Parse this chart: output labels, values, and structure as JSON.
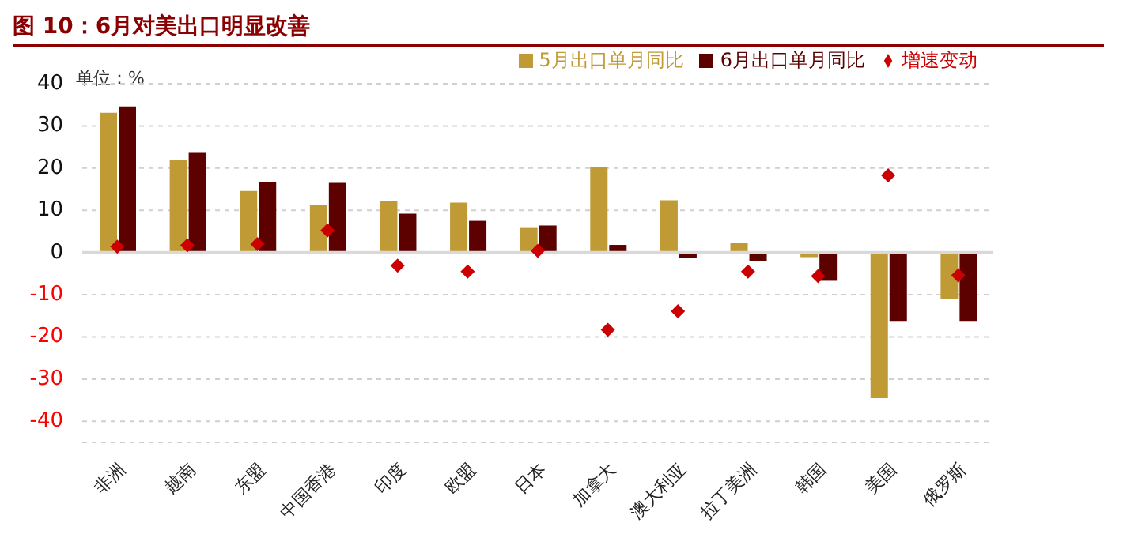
{
  "chart_data": {
    "type": "bar",
    "title": "图 10：6月对美出口明显改善",
    "annotations": [
      "单位：%"
    ],
    "categories": [
      "非洲",
      "越南",
      "东盟",
      "中国香港",
      "印度",
      "欧盟",
      "日本",
      "加拿大",
      "澳大利亚",
      "拉丁美洲",
      "韩国",
      "美国",
      "俄罗斯"
    ],
    "series": [
      {
        "name": "5月出口单月同比",
        "color": "#c09a35",
        "values": [
          33.1,
          21.9,
          14.6,
          11.2,
          12.3,
          11.8,
          6.0,
          20.2,
          12.4,
          2.3,
          -1.1,
          -34.5,
          -11.0
        ]
      },
      {
        "name": "6月出口单月同比",
        "color": "#5c0000",
        "values": [
          34.6,
          23.6,
          16.7,
          16.5,
          9.2,
          7.5,
          6.4,
          1.8,
          -1.2,
          -2.1,
          -6.7,
          -16.2,
          -16.2
        ]
      },
      {
        "name": "增速变动",
        "type": "scatter",
        "color": "#cc0000",
        "marker": "diamond",
        "values": [
          1.4,
          1.7,
          2.0,
          5.2,
          -3.1,
          -4.5,
          0.4,
          -18.3,
          -13.9,
          -4.5,
          -5.6,
          18.3,
          -5.4
        ]
      }
    ],
    "ylim": [
      -45,
      40
    ],
    "yticks": [
      -40,
      -30,
      -20,
      -10,
      0,
      10,
      20,
      30,
      40
    ],
    "grid": "y",
    "legend": "top right"
  }
}
